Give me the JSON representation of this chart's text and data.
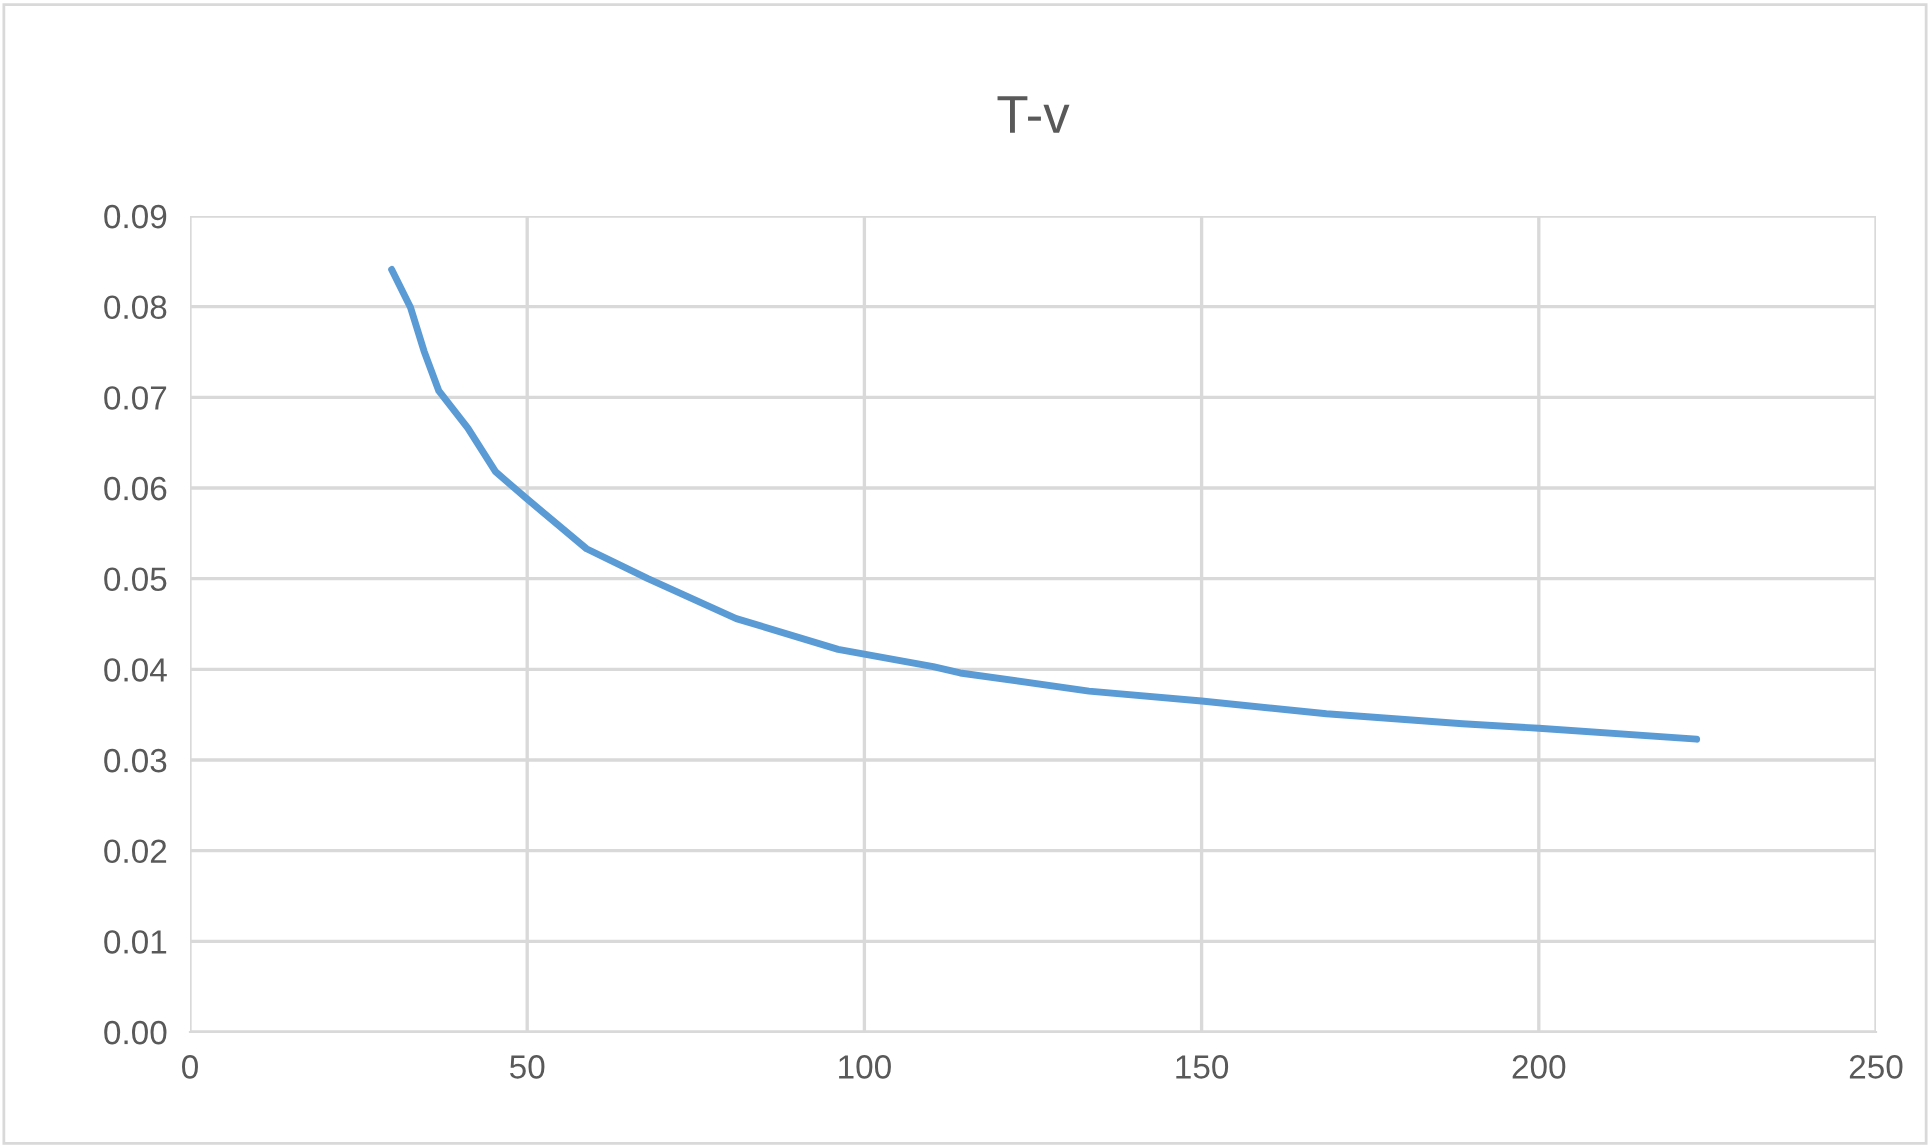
{
  "chart_data": {
    "type": "line",
    "title": "T-v",
    "x": [
      29.9,
      32.7,
      34.7,
      36.9,
      41.2,
      45.3,
      49.8,
      58.8,
      67.9,
      81.0,
      96.1,
      110.2,
      114.2,
      133.3,
      150,
      168.5,
      188.7,
      200,
      223.4
    ],
    "series": [
      {
        "color": "#5b9bd5",
        "values": [
          0.0841,
          0.0799,
          0.0751,
          0.0707,
          0.0666,
          0.0618,
          0.0589,
          0.0533,
          0.05,
          0.0456,
          0.0422,
          0.0403,
          0.0396,
          0.0376,
          0.0365,
          0.0351,
          0.034,
          0.0335,
          0.0323
        ]
      }
    ],
    "xlim": [
      0,
      250
    ],
    "xticks": [
      0,
      50,
      100,
      150,
      200,
      250
    ],
    "ylim": [
      0,
      0.09
    ],
    "yticks": [
      {
        "value": 0,
        "label": "0.00"
      },
      {
        "value": 0.01,
        "label": "0.01"
      },
      {
        "value": 0.02,
        "label": "0.02"
      },
      {
        "value": 0.03,
        "label": "0.03"
      },
      {
        "value": 0.04,
        "label": "0.04"
      },
      {
        "value": 0.05,
        "label": "0.05"
      },
      {
        "value": 0.06,
        "label": "0.06"
      },
      {
        "value": 0.07,
        "label": "0.07"
      },
      {
        "value": 0.08,
        "label": "0.08"
      },
      {
        "value": 0.09,
        "label": "0.09"
      }
    ],
    "grid": true,
    "marker": "none",
    "line_style": "solid"
  }
}
